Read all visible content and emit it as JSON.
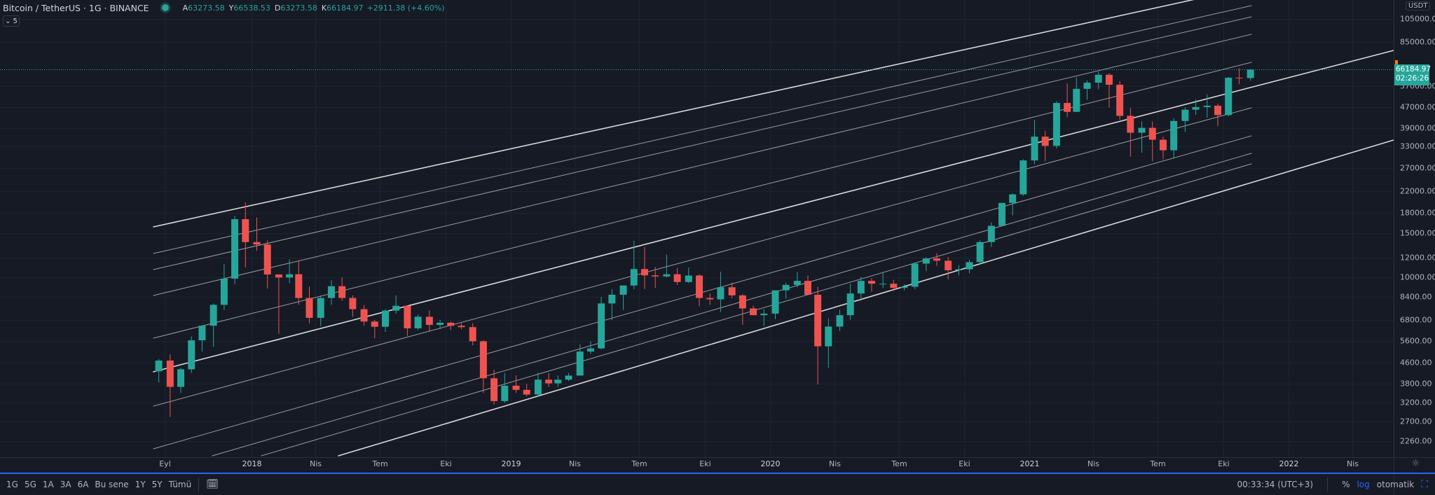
{
  "header": {
    "symbol": "Bitcoin / TetherUS · 1G · BINANCE",
    "ohlc": [
      {
        "key": "A",
        "value": "63273.58"
      },
      {
        "key": "Y",
        "value": "66538.53"
      },
      {
        "key": "D",
        "value": "63273.58"
      },
      {
        "key": "K",
        "value": "66184.97"
      }
    ],
    "change": "+2911.38 (+4.60%)",
    "collapse_label": "5",
    "status_color": "#26a69a"
  },
  "price_axis": {
    "unit": "USDT",
    "last_price": "66184.97",
    "countdown": "02:26:26",
    "last_price_value": 66184.97
  },
  "bottom_bar": {
    "periods": [
      "1G",
      "5G",
      "1A",
      "3A",
      "6A",
      "Bu sene",
      "1Y",
      "5Y",
      "Tümü"
    ],
    "clock": "00:33:34 (UTC+3)",
    "percent_label": "%",
    "log_label": "log",
    "auto_label": "otomatik"
  },
  "colors": {
    "up": "#26a69a",
    "down": "#ef5350",
    "background": "#161a25",
    "accent": "#2962ff"
  },
  "chart_data": {
    "type": "candlestick",
    "scale": "log",
    "grid": true,
    "ylim": [
      2100,
      125000
    ],
    "xlim": [
      "2017-02-15",
      "2022-07-05"
    ],
    "y_ticks": [
      105000,
      85000,
      57000,
      47000,
      39000,
      33000,
      27000,
      22000,
      18000,
      15000,
      12000,
      10000,
      8400,
      6800,
      5600,
      4600,
      3800,
      3200,
      2700,
      2260
    ],
    "x_ticks": [
      {
        "label": "Eyl",
        "date": "2017-09-01"
      },
      {
        "label": "2018",
        "date": "2018-01-01"
      },
      {
        "label": "Nis",
        "date": "2018-04-01"
      },
      {
        "label": "Tem",
        "date": "2018-07-01"
      },
      {
        "label": "Eki",
        "date": "2018-10-01"
      },
      {
        "label": "2019",
        "date": "2019-01-01"
      },
      {
        "label": "Nis",
        "date": "2019-04-01"
      },
      {
        "label": "Tem",
        "date": "2019-07-01"
      },
      {
        "label": "Eki",
        "date": "2019-10-01"
      },
      {
        "label": "2020",
        "date": "2020-01-01"
      },
      {
        "label": "Nis",
        "date": "2020-04-01"
      },
      {
        "label": "Tem",
        "date": "2020-07-01"
      },
      {
        "label": "Eki",
        "date": "2020-10-01"
      },
      {
        "label": "2021",
        "date": "2021-01-01"
      },
      {
        "label": "Nis",
        "date": "2021-04-01"
      },
      {
        "label": "Tem",
        "date": "2021-07-01"
      },
      {
        "label": "Eki",
        "date": "2021-10-01"
      },
      {
        "label": "2022",
        "date": "2022-01-01"
      },
      {
        "label": "Nis",
        "date": "2022-04-01"
      }
    ],
    "candles_fields": [
      "date",
      "open",
      "high",
      "low",
      "close"
    ],
    "candles": [
      [
        "2017-08-16",
        4261,
        4770,
        3850,
        4700
      ],
      [
        "2017-09-01",
        4700,
        4980,
        2817,
        3700
      ],
      [
        "2017-09-16",
        3700,
        4400,
        3500,
        4340
      ],
      [
        "2017-10-01",
        4340,
        5850,
        4200,
        5650
      ],
      [
        "2017-10-16",
        5650,
        6470,
        5100,
        6450
      ],
      [
        "2017-11-01",
        6450,
        7900,
        5325,
        7800
      ],
      [
        "2017-11-16",
        7800,
        11300,
        7450,
        9900
      ],
      [
        "2017-12-01",
        9900,
        17500,
        9400,
        17000
      ],
      [
        "2017-12-16",
        17000,
        19798,
        10960,
        13800
      ],
      [
        "2018-01-01",
        13800,
        17250,
        12750,
        13500
      ],
      [
        "2018-01-16",
        13500,
        14000,
        9035,
        10280
      ],
      [
        "2018-02-01",
        10280,
        10300,
        6000,
        10000
      ],
      [
        "2018-02-16",
        10000,
        11788,
        9500,
        10300
      ],
      [
        "2018-03-01",
        10300,
        11700,
        7800,
        8300
      ],
      [
        "2018-03-16",
        8300,
        9200,
        6600,
        6930
      ],
      [
        "2018-04-01",
        6930,
        8500,
        6430,
        8300
      ],
      [
        "2018-04-16",
        8300,
        9760,
        7800,
        9240
      ],
      [
        "2018-05-01",
        9240,
        10020,
        8100,
        8300
      ],
      [
        "2018-05-16",
        8300,
        8500,
        7000,
        7500
      ],
      [
        "2018-06-01",
        7500,
        7780,
        6450,
        6700
      ],
      [
        "2018-06-16",
        6700,
        6800,
        5750,
        6390
      ],
      [
        "2018-07-01",
        6390,
        7500,
        6100,
        7400
      ],
      [
        "2018-07-16",
        7400,
        8500,
        7200,
        7730
      ],
      [
        "2018-08-01",
        7730,
        7750,
        5880,
        6300
      ],
      [
        "2018-08-16",
        6300,
        7140,
        6200,
        7000
      ],
      [
        "2018-09-01",
        7000,
        7410,
        6100,
        6500
      ],
      [
        "2018-09-16",
        6500,
        6800,
        6250,
        6630
      ],
      [
        "2018-10-01",
        6630,
        6700,
        6200,
        6450
      ],
      [
        "2018-10-16",
        6450,
        6600,
        6250,
        6370
      ],
      [
        "2018-11-01",
        6370,
        6600,
        5400,
        5600
      ],
      [
        "2018-11-16",
        5600,
        5650,
        3500,
        4000
      ],
      [
        "2018-12-01",
        4000,
        4320,
        3150,
        3250
      ],
      [
        "2018-12-16",
        3250,
        4200,
        3200,
        3740
      ],
      [
        "2019-01-01",
        3740,
        4100,
        3500,
        3600
      ],
      [
        "2019-01-16",
        3600,
        3800,
        3400,
        3450
      ],
      [
        "2019-02-01",
        3450,
        4200,
        3370,
        3950
      ],
      [
        "2019-02-16",
        3950,
        4200,
        3700,
        3820
      ],
      [
        "2019-03-01",
        3820,
        4100,
        3700,
        3950
      ],
      [
        "2019-03-16",
        3950,
        4200,
        3900,
        4100
      ],
      [
        "2019-04-01",
        4100,
        5450,
        4100,
        5100
      ],
      [
        "2019-04-16",
        5100,
        5600,
        5000,
        5250
      ],
      [
        "2019-05-01",
        5250,
        8400,
        5200,
        7900
      ],
      [
        "2019-05-16",
        7900,
        9000,
        6800,
        8550
      ],
      [
        "2019-06-01",
        8550,
        9300,
        7450,
        9300
      ],
      [
        "2019-06-16",
        9300,
        13970,
        9000,
        10800
      ],
      [
        "2019-07-01",
        10800,
        13200,
        9000,
        10200
      ],
      [
        "2019-07-16",
        10200,
        11000,
        9100,
        10100
      ],
      [
        "2019-08-01",
        10100,
        12300,
        10000,
        10300
      ],
      [
        "2019-08-16",
        10300,
        10900,
        9350,
        9600
      ],
      [
        "2019-09-01",
        9600,
        10950,
        9500,
        10180
      ],
      [
        "2019-09-16",
        10180,
        10300,
        7700,
        8300
      ],
      [
        "2019-10-01",
        8300,
        8650,
        7800,
        8200
      ],
      [
        "2019-10-16",
        8200,
        10540,
        7300,
        9150
      ],
      [
        "2019-11-01",
        9150,
        9550,
        8300,
        8500
      ],
      [
        "2019-11-16",
        8500,
        8600,
        6500,
        7550
      ],
      [
        "2019-12-01",
        7550,
        7750,
        7100,
        7100
      ],
      [
        "2019-12-16",
        7100,
        7500,
        6435,
        7200
      ],
      [
        "2020-01-01",
        7200,
        8900,
        6850,
        8900
      ],
      [
        "2020-01-16",
        8900,
        9550,
        8250,
        9350
      ],
      [
        "2020-02-01",
        9350,
        10500,
        9150,
        9700
      ],
      [
        "2020-02-16",
        9700,
        10200,
        8500,
        8550
      ],
      [
        "2020-03-01",
        8550,
        9200,
        3782,
        5350
      ],
      [
        "2020-03-16",
        5350,
        6900,
        4400,
        6400
      ],
      [
        "2020-04-01",
        6400,
        7450,
        6150,
        7100
      ],
      [
        "2020-04-16",
        7100,
        9460,
        6800,
        8650
      ],
      [
        "2020-05-01",
        8650,
        10070,
        8100,
        9700
      ],
      [
        "2020-05-16",
        9700,
        9950,
        8800,
        9450
      ],
      [
        "2020-06-01",
        9450,
        10400,
        9100,
        9450
      ],
      [
        "2020-06-16",
        9450,
        9800,
        8850,
        9100
      ],
      [
        "2020-07-01",
        9100,
        9400,
        8900,
        9200
      ],
      [
        "2020-07-16",
        9200,
        11400,
        9000,
        11350
      ],
      [
        "2020-08-01",
        11350,
        12000,
        10600,
        11900
      ],
      [
        "2020-08-16",
        11900,
        12470,
        11100,
        11650
      ],
      [
        "2020-09-01",
        11650,
        12050,
        9825,
        10680
      ],
      [
        "2020-09-16",
        10680,
        11200,
        10200,
        10780
      ],
      [
        "2020-10-01",
        10780,
        11750,
        10400,
        11500
      ],
      [
        "2020-10-16",
        11500,
        14000,
        11200,
        13800
      ],
      [
        "2020-11-01",
        13800,
        16500,
        13200,
        16000
      ],
      [
        "2020-11-16",
        16000,
        19400,
        16000,
        19700
      ],
      [
        "2020-12-01",
        19700,
        21500,
        17600,
        21300
      ],
      [
        "2020-12-16",
        21300,
        29300,
        21000,
        29000
      ],
      [
        "2021-01-01",
        29000,
        41950,
        28100,
        36000
      ],
      [
        "2021-01-16",
        36000,
        38000,
        28800,
        33100
      ],
      [
        "2021-02-01",
        33100,
        49700,
        32300,
        48900
      ],
      [
        "2021-02-16",
        48900,
        58350,
        43000,
        45100
      ],
      [
        "2021-03-01",
        45100,
        61800,
        45000,
        55600
      ],
      [
        "2021-03-16",
        55600,
        60000,
        50300,
        58800
      ],
      [
        "2021-04-01",
        58800,
        64850,
        55400,
        63200
      ],
      [
        "2021-04-16",
        63200,
        64100,
        47000,
        57700
      ],
      [
        "2021-05-01",
        57700,
        59600,
        42000,
        43500
      ],
      [
        "2021-05-16",
        43500,
        46700,
        30000,
        37300
      ],
      [
        "2021-06-01",
        37300,
        41300,
        31100,
        39000
      ],
      [
        "2021-06-16",
        39000,
        41300,
        28800,
        35000
      ],
      [
        "2021-07-01",
        35000,
        36000,
        29300,
        31800
      ],
      [
        "2021-07-16",
        31800,
        42600,
        29500,
        41500
      ],
      [
        "2021-08-01",
        41500,
        47000,
        37600,
        46000
      ],
      [
        "2021-08-16",
        46000,
        50500,
        43900,
        47100
      ],
      [
        "2021-09-01",
        47100,
        52900,
        42800,
        47700
      ],
      [
        "2021-09-16",
        47700,
        48500,
        39600,
        43800
      ],
      [
        "2021-10-01",
        43800,
        62000,
        43300,
        61500
      ],
      [
        "2021-10-16",
        61500,
        67000,
        58000,
        61300
      ],
      [
        "2021-11-01",
        61300,
        66538.53,
        59800,
        66184.97
      ]
    ]
  }
}
